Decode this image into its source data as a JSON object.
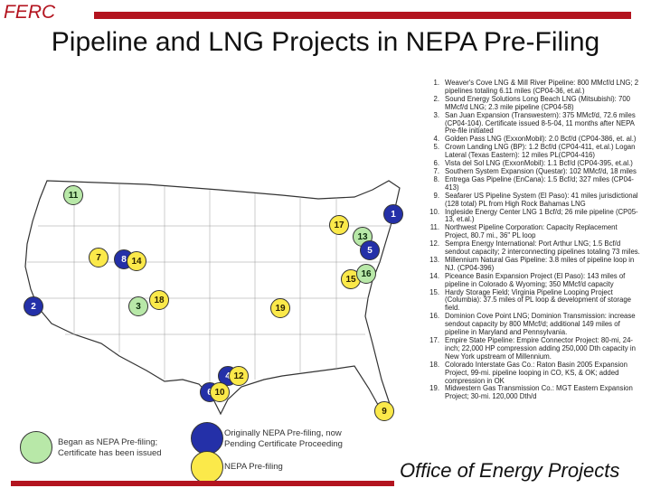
{
  "header": {
    "org": "FERC",
    "title": "Pipeline and LNG Projects in NEPA Pre-Filing"
  },
  "colors": {
    "accent": "#b3141f",
    "green": "#b8e8a8",
    "yellow": "#fbe94a",
    "blue": "#2430a8"
  },
  "markers": [
    {
      "label": "11",
      "color": "green"
    },
    {
      "label": "1",
      "color": "blue"
    },
    {
      "label": "17",
      "color": "yellow"
    },
    {
      "label": "13",
      "color": "green"
    },
    {
      "label": "7",
      "color": "yellow"
    },
    {
      "label": "8",
      "color": "blue"
    },
    {
      "label": "14",
      "color": "yellow"
    },
    {
      "label": "5",
      "color": "blue"
    },
    {
      "label": "15",
      "color": "yellow"
    },
    {
      "label": "16",
      "color": "green"
    },
    {
      "label": "2",
      "color": "blue"
    },
    {
      "label": "3",
      "color": "green"
    },
    {
      "label": "18",
      "color": "yellow"
    },
    {
      "label": "19",
      "color": "yellow"
    },
    {
      "label": "4",
      "color": "blue"
    },
    {
      "label": "12",
      "color": "yellow"
    },
    {
      "label": "6",
      "color": "blue"
    },
    {
      "label": "10",
      "color": "yellow"
    },
    {
      "label": "9",
      "color": "yellow"
    }
  ],
  "legend": {
    "green_text": "Began as NEPA Pre-filing;\nCertificate has been issued",
    "blue_text": "Originally NEPA Pre-filing, now\nPending Certificate Proceeding",
    "yellow_text": "NEPA Pre-filing"
  },
  "projects": [
    {
      "num": "1.",
      "text": "Weaver's Cove LNG & Mill River Pipeline: 800 MMcf/d LNG; 2 pipelines totaling 6.11 miles (CP04-36, et.al.)"
    },
    {
      "num": "2.",
      "text": "Sound Energy Solutions Long Beach LNG (Mitsubishi): 700 MMcf/d LNG; 2.3 mile pipeline (CP04-58)"
    },
    {
      "num": "3.",
      "text": "San Juan Expansion (Transwestern): 375 MMcf/d, 72.6 miles (CP04-104). Certificate issued 8-5-04, 11 months after NEPA Pre-file initiated"
    },
    {
      "num": "4.",
      "text": "Golden Pass LNG (ExxonMobil): 2.0 Bcf/d (CP04-386, et. al.)"
    },
    {
      "num": "5.",
      "text": "Crown Landing LNG (BP): 1.2 Bcf/d (CP04-411, et.al.) Logan Lateral (Texas Eastern): 12 miles PL(CP04-416)"
    },
    {
      "num": "6.",
      "text": "Vista del Sol LNG (ExxonMobil): 1.1 Bcf/d (CP04-395, et.al.)"
    },
    {
      "num": "7.",
      "text": "Southern System Expansion (Questar): 102 MMcf/d, 18 miles"
    },
    {
      "num": "8.",
      "text": "Entrega Gas Pipeline (EnCana): 1.5 Bcf/d; 327 miles (CP04-413)"
    },
    {
      "num": "9.",
      "text": "Seafarer US Pipeline System (El Paso): 41 miles jurisdictional (128 total) PL from High Rock Bahamas LNG"
    },
    {
      "num": "10.",
      "text": "Ingleside Energy Center LNG 1 Bcf/d; 26 mile pipeline (CP05-13, et.al.)"
    },
    {
      "num": "11.",
      "text": "Northwest Pipeline Corporation: Capacity Replacement Project, 80.7 mi., 36\" PL loop"
    },
    {
      "num": "12.",
      "text": "Sempra Energy International: Port Arthur LNG; 1.5 Bcf/d sendout capacity; 2 interconnecting pipelines totaling 73 miles."
    },
    {
      "num": "13.",
      "text": "Millennium Natural Gas Pipeline: 3.8 miles of pipeline loop in NJ. (CP04-396)"
    },
    {
      "num": "14.",
      "text": "Piceance Basin Expansion Project (El Paso): 143 miles of pipeline in Colorado & Wyoming; 350 MMcf/d capacity"
    },
    {
      "num": "15.",
      "text": "Hardy Storage Field; Virginia Pipeline Looping Project (Columbia): 37.5 miles of PL loop & development of storage field."
    },
    {
      "num": "16.",
      "text": "Dominion Cove Point LNG; Dominion Transmission: increase sendout capacity by 800 MMcf/d; additional 149 miles of pipeline in Maryland and Pennsylvania."
    },
    {
      "num": "17.",
      "text": "Empire State Pipeline: Empire Connector Project: 80-mi, 24-inch; 22,000 HP compression adding 250,000 Dth capacity in New York upstream of Millennium."
    },
    {
      "num": "18.",
      "text": "Colorado Interstate Gas Co.: Raton Basin 2005 Expansion Project, 99-mi. pipeline looping in CO, KS, & OK; added compression in OK"
    },
    {
      "num": "19.",
      "text": "Midwestern Gas Transmission Co.: MGT Eastern Expansion Project; 30-mi. 120,000 Dth/d"
    }
  ],
  "footer": {
    "office": "Office of Energy Projects"
  }
}
